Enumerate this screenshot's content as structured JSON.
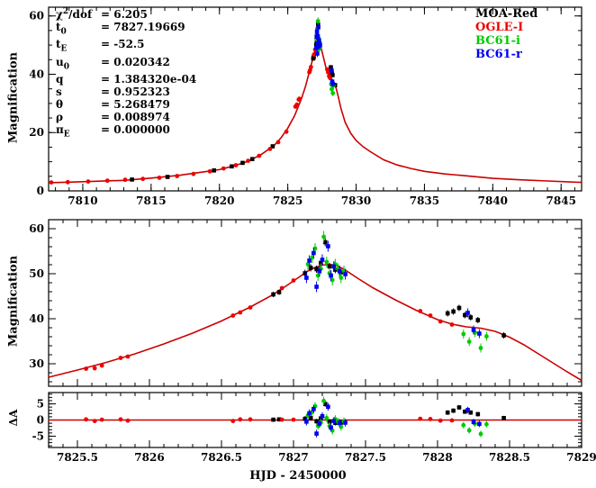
{
  "figure": {
    "xlabel": "HJD - 2450000",
    "ylabel_top": "Magnification",
    "ylabel_zoom": "Magnification",
    "ylabel_residual": "ΔA"
  },
  "params": [
    {
      "base": "χ",
      "sup": "2",
      "suffix": "/dof",
      "value": "6.205"
    },
    {
      "base": "t",
      "sub": "0",
      "value": "7827.19669"
    },
    {
      "base": "t",
      "sub": "E",
      "value": "-52.5"
    },
    {
      "base": "u",
      "sub": "0",
      "value": "0.020342"
    },
    {
      "base": "q",
      "value": "1.384320e-04"
    },
    {
      "base": "s",
      "value": "0.952323"
    },
    {
      "base": "θ",
      "value": "5.268479"
    },
    {
      "base": "ρ",
      "value": "0.008974"
    },
    {
      "base": "π",
      "sub": "E",
      "value": "0.000000"
    }
  ],
  "chart_data": {
    "type": "line",
    "subtype": "microlensing-light-curve-three-panel",
    "xlabel": "HJD - 2450000",
    "ylabel": "Magnification",
    "ylabel_residual": "ΔA",
    "panels": {
      "top": {
        "xlim": [
          7807.5,
          7846.5
        ],
        "ylim": [
          0,
          63
        ],
        "xticks": [
          7810,
          7815,
          7820,
          7825,
          7830,
          7835,
          7840,
          7845
        ],
        "yticks": [
          0,
          20,
          40,
          60
        ],
        "x_minor": 1,
        "y_minor": 5
      },
      "zoom": {
        "xlim": [
          7825.3,
          7829.0
        ],
        "ylim": [
          25,
          62
        ],
        "xticks": [
          7825.5,
          7826,
          7826.5,
          7827,
          7827.5,
          7828,
          7828.5,
          7829
        ],
        "yticks": [
          30,
          40,
          50,
          60
        ],
        "x_minor": 0.1,
        "y_minor": 2
      },
      "residual": {
        "xlim": [
          7825.3,
          7829.0
        ],
        "ylim": [
          -8.5,
          8.5
        ],
        "xticks": [
          7825.5,
          7826,
          7826.5,
          7827,
          7827.5,
          7828,
          7828.5,
          7829
        ],
        "yticks": [
          -5,
          0,
          5
        ],
        "x_minor": 0.1,
        "y_minor": 1
      }
    },
    "model_color": "#cc0000",
    "model_top": {
      "x": [
        7807.5,
        7809,
        7811,
        7813,
        7815,
        7817,
        7819,
        7820,
        7821,
        7822,
        7823,
        7824,
        7824.5,
        7825,
        7825.5,
        7826,
        7826.3,
        7826.6,
        7826.8,
        7827.0,
        7827.1,
        7827.2,
        7827.3,
        7827.45,
        7827.6,
        7827.8,
        7828.0,
        7828.2,
        7828.35,
        7828.5,
        7828.7,
        7828.9,
        7829.2,
        7829.6,
        7830,
        7830.5,
        7831,
        7832,
        7833,
        7834,
        7835,
        7836.5,
        7838,
        7840,
        7842,
        7844,
        7846.5
      ],
      "y": [
        2.8,
        3.0,
        3.3,
        3.6,
        4.4,
        5.3,
        6.6,
        7.3,
        8.5,
        10.0,
        12.3,
        15.6,
        18.2,
        21.5,
        25.8,
        31.6,
        35.9,
        41.2,
        44.8,
        48.5,
        50.6,
        51.9,
        51.8,
        48.9,
        46.0,
        42.2,
        39.8,
        38.2,
        37.6,
        35.9,
        32.2,
        28.2,
        23.5,
        19.8,
        17.3,
        15.2,
        13.6,
        10.7,
        8.9,
        7.7,
        6.7,
        5.8,
        5.2,
        4.3,
        3.8,
        3.4,
        2.9
      ]
    },
    "model_zoom": {
      "x": [
        7825.3,
        7825.5,
        7825.7,
        7825.9,
        7826.1,
        7826.3,
        7826.5,
        7826.7,
        7826.85,
        7826.95,
        7827.05,
        7827.1,
        7827.15,
        7827.2,
        7827.25,
        7827.3,
        7827.35,
        7827.45,
        7827.55,
        7827.7,
        7827.85,
        7828.0,
        7828.1,
        7828.2,
        7828.3,
        7828.4,
        7828.5,
        7828.6,
        7828.7,
        7828.8,
        7828.9,
        7829.0
      ],
      "y": [
        27.0,
        28.6,
        30.3,
        32.2,
        34.4,
        36.8,
        39.5,
        42.6,
        45.2,
        47.3,
        49.5,
        50.6,
        51.4,
        51.9,
        52.1,
        51.8,
        51.0,
        48.9,
        46.9,
        44.3,
        41.9,
        39.8,
        38.8,
        38.2,
        37.9,
        37.2,
        35.9,
        34.2,
        32.2,
        30.2,
        28.2,
        26.3
      ]
    },
    "series": [
      {
        "name": "MOA-Red",
        "color": "#000000",
        "marker": "square",
        "points": [
          [
            7813.6,
            3.9,
            0.1,
            0
          ],
          [
            7816.2,
            4.8,
            0.1,
            0
          ],
          [
            7819.6,
            7.0,
            0.2,
            0
          ],
          [
            7820.9,
            8.4,
            0.0,
            0
          ],
          [
            7821.7,
            9.6,
            0.1,
            0
          ],
          [
            7822.4,
            10.9,
            0.1,
            0
          ],
          [
            7823.9,
            15.3,
            0.2,
            0
          ],
          [
            7826.86,
            45.4,
            0.1,
            0.6
          ],
          [
            7826.9,
            45.9,
            0.2,
            0.6
          ],
          [
            7827.08,
            50.1,
            0.4,
            0.8
          ],
          [
            7827.12,
            51.3,
            0.6,
            0.8
          ],
          [
            7827.16,
            51.0,
            -0.4,
            0.8
          ],
          [
            7827.19,
            52.4,
            0.5,
            0.8
          ],
          [
            7827.22,
            57.0,
            5.0,
            0.9
          ],
          [
            7827.25,
            51.6,
            -0.5,
            0.8
          ],
          [
            7827.29,
            50.9,
            -0.9,
            0.8
          ],
          [
            7827.33,
            50.3,
            -0.8,
            0.8
          ],
          [
            7828.07,
            41.2,
            2.3,
            0.7
          ],
          [
            7828.11,
            41.6,
            2.9,
            0.7
          ],
          [
            7828.15,
            42.4,
            3.9,
            0.7
          ],
          [
            7828.19,
            40.8,
            2.6,
            0.7
          ],
          [
            7828.23,
            40.3,
            2.3,
            0.7
          ],
          [
            7828.28,
            39.7,
            1.8,
            0.7
          ],
          [
            7828.46,
            36.3,
            0.6,
            0.7
          ]
        ]
      },
      {
        "name": "OGLE-I",
        "color": "#ee0000",
        "marker": "circle",
        "points": [
          [
            7807.7,
            2.9,
            0.1,
            0
          ],
          [
            7808.9,
            3.0,
            0.0,
            0
          ],
          [
            7810.4,
            3.2,
            0.0,
            0
          ],
          [
            7811.8,
            3.5,
            0.1,
            0
          ],
          [
            7813.1,
            3.8,
            0.1,
            0
          ],
          [
            7814.4,
            4.1,
            0.0,
            0
          ],
          [
            7815.6,
            4.5,
            0.0,
            0
          ],
          [
            7816.9,
            5.1,
            0.1,
            0
          ],
          [
            7818.1,
            5.8,
            0.0,
            0
          ],
          [
            7819.3,
            6.7,
            0.1,
            0
          ],
          [
            7820.3,
            7.7,
            0.0,
            0
          ],
          [
            7821.2,
            8.8,
            -0.1,
            0
          ],
          [
            7822.1,
            10.3,
            0.0,
            0
          ],
          [
            7822.9,
            12.0,
            -0.1,
            0
          ],
          [
            7823.7,
            14.4,
            -0.2,
            0
          ],
          [
            7824.3,
            16.7,
            0.1,
            0
          ],
          [
            7824.9,
            20.3,
            -0.2,
            0
          ],
          [
            7825.56,
            28.9,
            0.2,
            0
          ],
          [
            7825.62,
            29.0,
            -0.3,
            0
          ],
          [
            7825.67,
            29.6,
            0.1,
            0
          ],
          [
            7825.8,
            31.3,
            0.2,
            0
          ],
          [
            7825.85,
            31.6,
            -0.2,
            0
          ],
          [
            7826.58,
            40.7,
            -0.3,
            0
          ],
          [
            7826.63,
            41.4,
            0.2,
            0
          ],
          [
            7826.7,
            42.5,
            0.2,
            0
          ],
          [
            7826.92,
            46.8,
            0.1,
            0
          ],
          [
            7827.0,
            48.5,
            0.1,
            0
          ],
          [
            7827.88,
            41.7,
            0.4,
            0
          ],
          [
            7827.95,
            40.7,
            0.3,
            0
          ],
          [
            7828.02,
            39.4,
            -0.2,
            0
          ],
          [
            7828.1,
            38.7,
            -0.1,
            0
          ]
        ]
      },
      {
        "name": "BC61-i",
        "color": "#00cc00",
        "marker": "circle",
        "points": [
          [
            7827.1,
            52.1,
            1.4,
            1.2
          ],
          [
            7827.13,
            53.6,
            2.5,
            1.2
          ],
          [
            7827.15,
            55.6,
            4.3,
            1.2
          ],
          [
            7827.17,
            49.6,
            -1.8,
            1.2
          ],
          [
            7827.19,
            51.1,
            -0.8,
            1.2
          ],
          [
            7827.21,
            58.2,
            5.9,
            1.3
          ],
          [
            7827.23,
            52.6,
            0.6,
            1.2
          ],
          [
            7827.25,
            50.1,
            -1.9,
            1.2
          ],
          [
            7827.27,
            48.6,
            -3.3,
            1.2
          ],
          [
            7827.29,
            52.1,
            0.3,
            1.2
          ],
          [
            7827.31,
            51.1,
            -0.6,
            1.2
          ],
          [
            7827.33,
            49.1,
            -2.1,
            1.2
          ],
          [
            7827.35,
            50.6,
            -0.4,
            1.2
          ],
          [
            7828.18,
            36.6,
            -1.6,
            1.0
          ],
          [
            7828.22,
            34.9,
            -3.2,
            1.0
          ],
          [
            7828.26,
            36.9,
            -1.1,
            1.0
          ],
          [
            7828.3,
            33.5,
            -4.3,
            1.0
          ],
          [
            7828.34,
            36.1,
            -1.3,
            1.0
          ]
        ]
      },
      {
        "name": "BC61-r",
        "color": "#0000ee",
        "marker": "square",
        "points": [
          [
            7827.09,
            49.1,
            -0.5,
            1.2
          ],
          [
            7827.11,
            52.9,
            2.1,
            1.2
          ],
          [
            7827.14,
            54.6,
            3.4,
            1.2
          ],
          [
            7827.16,
            47.1,
            -4.2,
            1.2
          ],
          [
            7827.18,
            50.6,
            -1.1,
            1.2
          ],
          [
            7827.2,
            53.1,
            1.2,
            1.2
          ],
          [
            7827.24,
            56.1,
            4.1,
            1.2
          ],
          [
            7827.26,
            49.6,
            -2.3,
            1.2
          ],
          [
            7827.28,
            51.6,
            -0.3,
            1.2
          ],
          [
            7827.32,
            50.6,
            -0.9,
            1.2
          ],
          [
            7827.36,
            49.9,
            -0.8,
            1.2
          ],
          [
            7828.21,
            41.3,
            3.1,
            1.0
          ],
          [
            7828.25,
            37.5,
            -0.6,
            1.0
          ],
          [
            7828.29,
            36.7,
            -1.2,
            1.0
          ]
        ]
      }
    ]
  }
}
